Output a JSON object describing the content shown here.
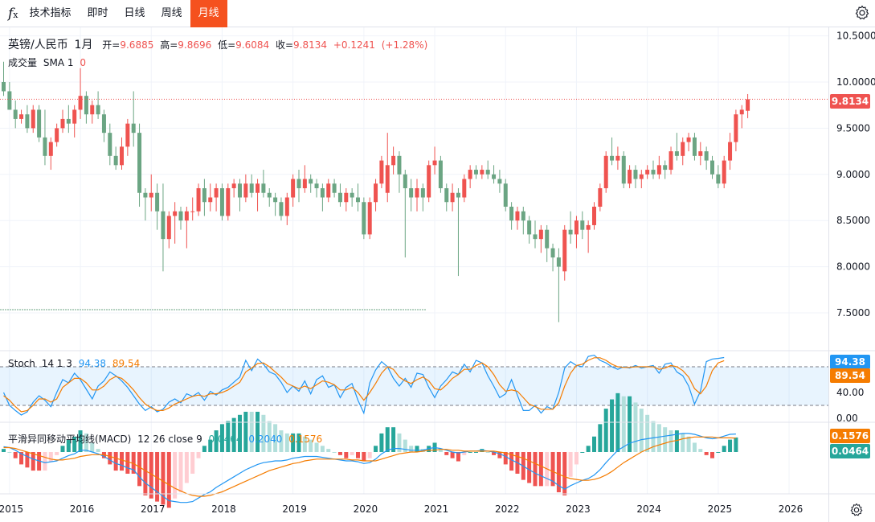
{
  "toolbar": {
    "fx_label": "f",
    "items": [
      "技术指标",
      "即时",
      "日线",
      "周线",
      "月线"
    ],
    "active_index": 4
  },
  "price_legend": {
    "symbol": "英镑/人民币",
    "interval": "1月",
    "open_label": "开=",
    "open": "9.6885",
    "high_label": "高=",
    "high": "9.8696",
    "low_label": "低=",
    "low": "9.6084",
    "close_label": "收=",
    "close": "9.8134",
    "change": "+0.1241",
    "change_pct": "(+1.28%)"
  },
  "volume_legend": {
    "label": "成交量",
    "sma": "SMA 1",
    "value": "0"
  },
  "stoch_legend": {
    "label": "Stoch",
    "params": "14 1 3",
    "k": "94.38",
    "d": "89.54"
  },
  "macd_legend": {
    "label": "平滑异同移动平均线(MACD)",
    "params": "12 26 close 9",
    "hist": "0.0464",
    "macd": "0.2040",
    "signal": "0.1576"
  },
  "price_axis": {
    "ticks": [
      "10.5000",
      "10.0000",
      "9.5000",
      "9.0000",
      "8.5000",
      "8.0000",
      "7.5000"
    ],
    "current": "9.8134"
  },
  "stoch_axis": {
    "ticks": [
      "40.00",
      "0.00"
    ],
    "k_tag": "94.38",
    "d_tag": "89.54"
  },
  "macd_axis": {
    "signal_tag": "0.1576",
    "hist_tag": "0.0464"
  },
  "time_axis": {
    "labels": [
      "2015",
      "2016",
      "2017",
      "2018",
      "2019",
      "2020",
      "2021",
      "2022",
      "2023",
      "2024",
      "2025",
      "2026"
    ]
  },
  "colors": {
    "up": "#ef5350",
    "down": "#6ba583",
    "k_line": "#2196f3",
    "d_line": "#f57c00",
    "accent": "#f5511e"
  },
  "chart_data": {
    "type": "candlestick",
    "interval": "monthly",
    "x_start": "2014-12",
    "ylim": [
      7.3,
      10.6
    ],
    "ohlc": [
      [
        10.0,
        10.22,
        9.85,
        9.9
      ],
      [
        9.9,
        10.0,
        9.7,
        9.7
      ],
      [
        9.7,
        9.8,
        9.5,
        9.6
      ],
      [
        9.6,
        9.7,
        9.55,
        9.65
      ],
      [
        9.65,
        9.75,
        9.45,
        9.5
      ],
      [
        9.5,
        9.75,
        9.45,
        9.7
      ],
      [
        9.7,
        9.75,
        9.35,
        9.4
      ],
      [
        9.4,
        9.7,
        9.1,
        9.2
      ],
      [
        9.2,
        9.4,
        9.05,
        9.35
      ],
      [
        9.35,
        9.55,
        9.3,
        9.5
      ],
      [
        9.5,
        9.7,
        9.45,
        9.6
      ],
      [
        9.6,
        9.75,
        9.45,
        9.55
      ],
      [
        9.55,
        9.75,
        9.4,
        9.7
      ],
      [
        9.7,
        10.15,
        9.6,
        9.85
      ],
      [
        9.85,
        9.9,
        9.55,
        9.65
      ],
      [
        9.65,
        9.8,
        9.55,
        9.75
      ],
      [
        9.75,
        9.9,
        9.6,
        9.65
      ],
      [
        9.65,
        9.7,
        9.35,
        9.45
      ],
      [
        9.45,
        9.55,
        9.1,
        9.2
      ],
      [
        9.2,
        9.3,
        9.05,
        9.1
      ],
      [
        9.1,
        9.4,
        9.05,
        9.3
      ],
      [
        9.3,
        9.6,
        9.2,
        9.55
      ],
      [
        9.55,
        9.9,
        9.3,
        9.45
      ],
      [
        9.45,
        9.55,
        8.65,
        8.8
      ],
      [
        8.8,
        8.85,
        8.5,
        8.75
      ],
      [
        8.75,
        9.0,
        8.6,
        8.8
      ],
      [
        8.8,
        8.9,
        8.4,
        8.6
      ],
      [
        8.6,
        8.9,
        7.95,
        8.3
      ],
      [
        8.3,
        8.6,
        8.2,
        8.55
      ],
      [
        8.55,
        8.7,
        8.25,
        8.6
      ],
      [
        8.6,
        8.65,
        8.4,
        8.5
      ],
      [
        8.5,
        8.65,
        8.2,
        8.6
      ],
      [
        8.6,
        8.75,
        8.5,
        8.6
      ],
      [
        8.6,
        8.9,
        8.55,
        8.85
      ],
      [
        8.85,
        8.95,
        8.55,
        8.7
      ],
      [
        8.7,
        8.9,
        8.6,
        8.75
      ],
      [
        8.75,
        8.9,
        8.6,
        8.85
      ],
      [
        8.85,
        8.9,
        8.5,
        8.55
      ],
      [
        8.55,
        8.9,
        8.5,
        8.85
      ],
      [
        8.85,
        8.95,
        8.75,
        8.9
      ],
      [
        8.9,
        8.95,
        8.6,
        8.75
      ],
      [
        8.75,
        9.0,
        8.7,
        8.9
      ],
      [
        8.9,
        9.0,
        8.75,
        8.8
      ],
      [
        8.8,
        8.95,
        8.6,
        8.9
      ],
      [
        8.9,
        9.05,
        8.75,
        8.8
      ],
      [
        8.8,
        8.85,
        8.65,
        8.75
      ],
      [
        8.75,
        8.8,
        8.55,
        8.7
      ],
      [
        8.7,
        8.75,
        8.5,
        8.55
      ],
      [
        8.55,
        8.8,
        8.45,
        8.75
      ],
      [
        8.75,
        9.0,
        8.65,
        8.95
      ],
      [
        8.95,
        9.05,
        8.7,
        8.85
      ],
      [
        8.85,
        9.1,
        8.8,
        8.95
      ],
      [
        8.95,
        9.0,
        8.8,
        8.9
      ],
      [
        8.9,
        8.95,
        8.75,
        8.85
      ],
      [
        8.85,
        8.9,
        8.6,
        8.75
      ],
      [
        8.75,
        8.95,
        8.7,
        8.9
      ],
      [
        8.9,
        8.95,
        8.75,
        8.8
      ],
      [
        8.8,
        8.9,
        8.65,
        8.7
      ],
      [
        8.7,
        8.85,
        8.6,
        8.8
      ],
      [
        8.8,
        8.85,
        8.65,
        8.75
      ],
      [
        8.75,
        8.9,
        8.6,
        8.7
      ],
      [
        8.7,
        8.75,
        8.3,
        8.35
      ],
      [
        8.35,
        8.75,
        8.3,
        8.7
      ],
      [
        8.7,
        8.95,
        8.6,
        8.9
      ],
      [
        8.9,
        9.2,
        8.85,
        9.15
      ],
      [
        8.8,
        9.45,
        8.7,
        9.1
      ],
      [
        9.1,
        9.3,
        9.0,
        9.2
      ],
      [
        9.2,
        9.25,
        8.8,
        9.0
      ],
      [
        9.0,
        9.05,
        8.1,
        8.85
      ],
      [
        8.85,
        8.95,
        8.6,
        8.75
      ],
      [
        8.75,
        8.95,
        8.6,
        8.85
      ],
      [
        8.85,
        8.9,
        8.6,
        8.75
      ],
      [
        8.75,
        9.15,
        8.7,
        9.1
      ],
      [
        9.1,
        9.3,
        9.0,
        9.15
      ],
      [
        9.15,
        9.2,
        8.8,
        8.85
      ],
      [
        8.85,
        8.9,
        8.6,
        8.7
      ],
      [
        8.7,
        8.9,
        8.6,
        8.8
      ],
      [
        8.8,
        8.85,
        7.9,
        8.75
      ],
      [
        8.75,
        9.0,
        8.7,
        8.95
      ],
      [
        8.95,
        9.1,
        8.85,
        9.05
      ],
      [
        9.05,
        9.1,
        8.95,
        9.0
      ],
      [
        9.0,
        9.1,
        8.95,
        9.05
      ],
      [
        9.05,
        9.15,
        8.95,
        9.0
      ],
      [
        9.0,
        9.1,
        8.9,
        8.95
      ],
      [
        8.95,
        9.05,
        8.8,
        8.9
      ],
      [
        8.9,
        8.95,
        8.6,
        8.65
      ],
      [
        8.65,
        8.7,
        8.4,
        8.5
      ],
      [
        8.5,
        8.65,
        8.4,
        8.6
      ],
      [
        8.6,
        8.65,
        8.35,
        8.5
      ],
      [
        8.5,
        8.55,
        8.25,
        8.35
      ],
      [
        8.35,
        8.5,
        8.2,
        8.3
      ],
      [
        8.3,
        8.45,
        8.15,
        8.4
      ],
      [
        8.4,
        8.45,
        8.05,
        8.2
      ],
      [
        8.2,
        8.25,
        7.95,
        8.1
      ],
      [
        8.1,
        8.2,
        7.4,
        8.0
      ],
      [
        7.95,
        8.45,
        7.85,
        8.4
      ],
      [
        8.4,
        8.6,
        8.25,
        8.35
      ],
      [
        8.35,
        8.55,
        8.2,
        8.5
      ],
      [
        8.5,
        8.6,
        8.3,
        8.4
      ],
      [
        8.4,
        8.5,
        8.15,
        8.45
      ],
      [
        8.45,
        8.7,
        8.4,
        8.65
      ],
      [
        8.65,
        8.9,
        8.6,
        8.85
      ],
      [
        8.85,
        9.25,
        8.8,
        9.2
      ],
      [
        9.2,
        9.4,
        9.1,
        9.15
      ],
      [
        9.15,
        9.3,
        9.05,
        9.2
      ],
      [
        9.2,
        9.25,
        8.85,
        8.9
      ],
      [
        8.9,
        9.1,
        8.85,
        9.05
      ],
      [
        9.05,
        9.1,
        8.85,
        8.95
      ],
      [
        8.95,
        9.05,
        8.85,
        9.0
      ],
      [
        9.0,
        9.1,
        8.95,
        9.05
      ],
      [
        9.05,
        9.15,
        8.95,
        9.0
      ],
      [
        9.0,
        9.2,
        8.95,
        9.1
      ],
      [
        9.1,
        9.15,
        8.95,
        9.05
      ],
      [
        9.05,
        9.3,
        9.0,
        9.25
      ],
      [
        9.25,
        9.45,
        9.15,
        9.2
      ],
      [
        9.2,
        9.4,
        9.1,
        9.35
      ],
      [
        9.35,
        9.45,
        9.25,
        9.4
      ],
      [
        9.4,
        9.45,
        9.15,
        9.2
      ],
      [
        9.2,
        9.35,
        9.1,
        9.25
      ],
      [
        9.25,
        9.3,
        9.05,
        9.15
      ],
      [
        9.15,
        9.2,
        8.95,
        9.0
      ],
      [
        9.0,
        9.1,
        8.85,
        8.9
      ],
      [
        8.9,
        9.2,
        8.85,
        9.15
      ],
      [
        9.15,
        9.45,
        9.05,
        9.35
      ],
      [
        9.35,
        9.7,
        9.25,
        9.65
      ],
      [
        9.65,
        9.75,
        9.5,
        9.7
      ],
      [
        9.6885,
        9.8696,
        9.6084,
        9.8134
      ]
    ],
    "stoch": {
      "name": "Stoch 14 1 3",
      "ylim": [
        0,
        100
      ],
      "k": [
        40,
        20,
        12,
        5,
        10,
        25,
        35,
        28,
        18,
        40,
        60,
        55,
        70,
        60,
        45,
        30,
        50,
        58,
        72,
        66,
        58,
        48,
        35,
        22,
        12,
        18,
        10,
        14,
        25,
        30,
        24,
        38,
        34,
        40,
        28,
        42,
        36,
        44,
        48,
        56,
        64,
        90,
        74,
        92,
        84,
        72,
        68,
        56,
        40,
        50,
        42,
        58,
        38,
        60,
        66,
        48,
        52,
        32,
        48,
        54,
        28,
        8,
        55,
        75,
        88,
        80,
        62,
        50,
        62,
        48,
        70,
        68,
        48,
        32,
        50,
        60,
        72,
        68,
        84,
        72,
        90,
        86,
        66,
        50,
        32,
        38,
        60,
        36,
        12,
        12,
        20,
        8,
        18,
        14,
        40,
        78,
        88,
        82,
        80,
        96,
        98,
        90,
        86,
        80,
        76,
        80,
        78,
        82,
        78,
        80,
        82,
        70,
        84,
        86,
        72,
        66,
        50,
        22,
        42,
        88,
        92,
        93,
        94.38
      ],
      "d": [
        35,
        28,
        18,
        10,
        12,
        20,
        30,
        30,
        25,
        30,
        48,
        55,
        62,
        62,
        55,
        44,
        44,
        50,
        60,
        65,
        62,
        54,
        44,
        32,
        22,
        16,
        12,
        12,
        16,
        22,
        26,
        30,
        34,
        36,
        34,
        38,
        38,
        40,
        44,
        50,
        56,
        72,
        78,
        85,
        86,
        80,
        72,
        64,
        54,
        50,
        46,
        50,
        46,
        52,
        58,
        56,
        52,
        44,
        44,
        48,
        40,
        28,
        40,
        54,
        70,
        80,
        76,
        64,
        58,
        54,
        60,
        64,
        58,
        46,
        44,
        52,
        62,
        68,
        76,
        76,
        82,
        86,
        80,
        68,
        52,
        42,
        44,
        42,
        32,
        22,
        18,
        14,
        14,
        14,
        24,
        50,
        70,
        82,
        84,
        90,
        94,
        94,
        90,
        84,
        80,
        79,
        79,
        80,
        80,
        80,
        80,
        76,
        78,
        82,
        80,
        74,
        64,
        46,
        38,
        50,
        74,
        86,
        89.54
      ]
    },
    "macd": {
      "name": "MACD 12 26 close 9",
      "macd": [
        0.06,
        0.05,
        0.02,
        -0.02,
        -0.05,
        -0.08,
        -0.1,
        -0.12,
        -0.11,
        -0.1,
        -0.07,
        -0.04,
        -0.02,
        0.02,
        0.02,
        0.0,
        -0.02,
        -0.05,
        -0.09,
        -0.13,
        -0.15,
        -0.18,
        -0.2,
        -0.28,
        -0.35,
        -0.4,
        -0.45,
        -0.5,
        -0.55,
        -0.56,
        -0.57,
        -0.57,
        -0.56,
        -0.52,
        -0.48,
        -0.45,
        -0.4,
        -0.36,
        -0.32,
        -0.28,
        -0.24,
        -0.2,
        -0.17,
        -0.14,
        -0.12,
        -0.11,
        -0.1,
        -0.1,
        -0.09,
        -0.07,
        -0.06,
        -0.05,
        -0.05,
        -0.05,
        -0.06,
        -0.07,
        -0.08,
        -0.09,
        -0.1,
        -0.1,
        -0.11,
        -0.13,
        -0.12,
        -0.08,
        -0.02,
        0.02,
        0.04,
        0.04,
        0.03,
        0.02,
        0.02,
        0.02,
        0.04,
        0.05,
        0.04,
        0.02,
        0.0,
        -0.01,
        0.0,
        0.01,
        0.01,
        0.02,
        0.01,
        0.0,
        -0.02,
        -0.05,
        -0.09,
        -0.12,
        -0.16,
        -0.2,
        -0.24,
        -0.27,
        -0.3,
        -0.33,
        -0.38,
        -0.42,
        -0.38,
        -0.35,
        -0.32,
        -0.3,
        -0.26,
        -0.2,
        -0.12,
        -0.05,
        0.02,
        0.06,
        0.1,
        0.12,
        0.14,
        0.15,
        0.16,
        0.17,
        0.18,
        0.19,
        0.2,
        0.21,
        0.21,
        0.2,
        0.18,
        0.16,
        0.15,
        0.16,
        0.18,
        0.2,
        0.204
      ],
      "signal": [
        0.05,
        0.05,
        0.04,
        0.02,
        0.0,
        -0.02,
        -0.04,
        -0.06,
        -0.08,
        -0.09,
        -0.09,
        -0.08,
        -0.07,
        -0.05,
        -0.04,
        -0.03,
        -0.03,
        -0.03,
        -0.05,
        -0.07,
        -0.09,
        -0.11,
        -0.13,
        -0.17,
        -0.21,
        -0.25,
        -0.29,
        -0.33,
        -0.37,
        -0.41,
        -0.44,
        -0.47,
        -0.49,
        -0.5,
        -0.5,
        -0.49,
        -0.47,
        -0.45,
        -0.42,
        -0.39,
        -0.36,
        -0.33,
        -0.3,
        -0.27,
        -0.24,
        -0.21,
        -0.19,
        -0.17,
        -0.15,
        -0.13,
        -0.12,
        -0.1,
        -0.09,
        -0.08,
        -0.08,
        -0.08,
        -0.08,
        -0.08,
        -0.08,
        -0.09,
        -0.09,
        -0.1,
        -0.1,
        -0.1,
        -0.08,
        -0.06,
        -0.04,
        -0.02,
        -0.01,
        0.0,
        0.0,
        0.01,
        0.02,
        0.02,
        0.03,
        0.03,
        0.02,
        0.02,
        0.01,
        0.01,
        0.01,
        0.01,
        0.01,
        0.01,
        0.0,
        -0.01,
        -0.03,
        -0.05,
        -0.07,
        -0.1,
        -0.13,
        -0.16,
        -0.19,
        -0.22,
        -0.25,
        -0.28,
        -0.3,
        -0.31,
        -0.32,
        -0.32,
        -0.31,
        -0.29,
        -0.26,
        -0.22,
        -0.17,
        -0.12,
        -0.08,
        -0.04,
        0.0,
        0.03,
        0.06,
        0.08,
        0.1,
        0.12,
        0.13,
        0.15,
        0.16,
        0.17,
        0.17,
        0.17,
        0.17,
        0.16,
        0.16,
        0.16,
        0.157
      ]
    }
  }
}
